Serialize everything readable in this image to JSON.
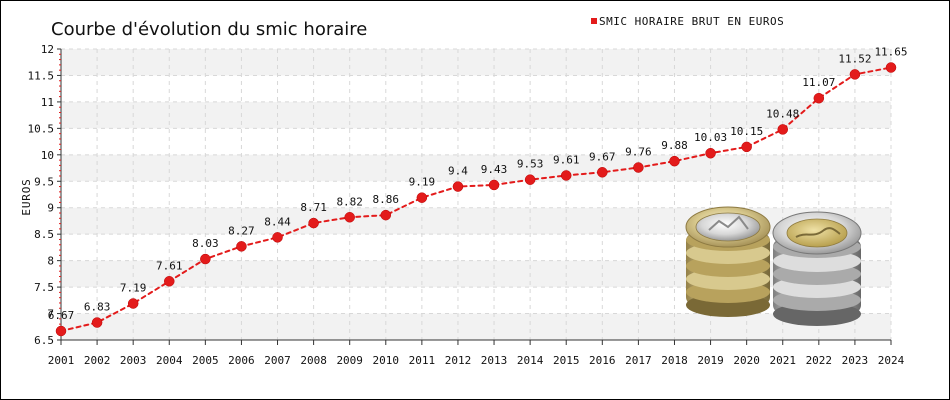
{
  "colors": {
    "series": "#e31b1b",
    "band": "#f2f2f2",
    "grid": "#d8d8d8",
    "axis": "#333333",
    "minor_tick": "#e31b1b"
  },
  "chart_data": {
    "type": "line",
    "title": "Courbe d'évolution du smic horaire",
    "ylabel": "EUROS",
    "xlabel": "",
    "ylim": [
      6.5,
      12
    ],
    "y_ticks": [
      "6.5",
      "7",
      "7.5",
      "8",
      "8.5",
      "9",
      "9.5",
      "10",
      "10.5",
      "11",
      "11.5",
      "12"
    ],
    "grid": true,
    "legend_position": "top-right",
    "categories": [
      "2001",
      "2002",
      "2003",
      "2004",
      "2005",
      "2006",
      "2007",
      "2008",
      "2009",
      "2010",
      "2011",
      "2012",
      "2013",
      "2014",
      "2015",
      "2016",
      "2017",
      "2018",
      "2019",
      "2020",
      "2021",
      "2022",
      "2023",
      "2024"
    ],
    "series": [
      {
        "name": "SMIC HORAIRE BRUT EN EUROS",
        "values": [
          6.67,
          6.83,
          7.19,
          7.61,
          8.03,
          8.27,
          8.44,
          8.71,
          8.82,
          8.86,
          9.19,
          9.4,
          9.43,
          9.53,
          9.61,
          9.67,
          9.76,
          9.88,
          10.03,
          10.15,
          10.48,
          11.07,
          11.52,
          11.65
        ],
        "labels": [
          "6.67",
          "6.83",
          "7.19",
          "7.61",
          "8.03",
          "8.27",
          "8.44",
          "8.71",
          "8.82",
          "8.86",
          "9.19",
          "9.4",
          "9.43",
          "9.53",
          "9.61",
          "9.67",
          "9.76",
          "9.88",
          "10.03",
          "10.15",
          "10.48",
          "11.07",
          "11.52",
          "11.65"
        ]
      }
    ]
  },
  "decorations": {
    "image_icon": "euro-coins-icon"
  }
}
